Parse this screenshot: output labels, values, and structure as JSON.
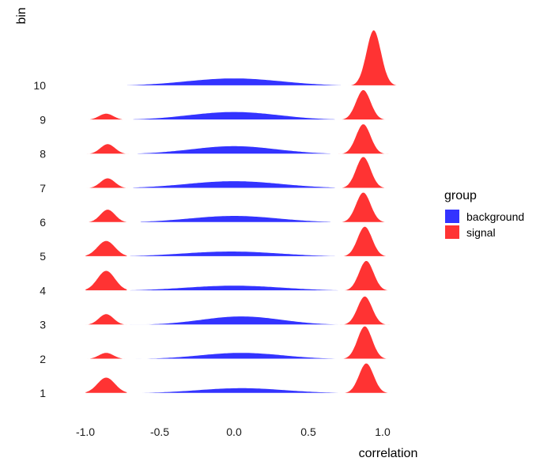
{
  "chart_data": {
    "type": "ridgeline",
    "xlabel": "correlation",
    "ylabel": "bin",
    "xlim": [
      -1.1,
      1.1
    ],
    "x_ticks": [
      -1.0,
      -0.5,
      0.0,
      0.5,
      1.0
    ],
    "x_tick_labels": [
      "-1.0",
      "-0.5",
      "0.0",
      "0.5",
      "1.0"
    ],
    "categories": [
      "1",
      "2",
      "3",
      "4",
      "5",
      "6",
      "7",
      "8",
      "9",
      "10"
    ],
    "legend": {
      "title": "group",
      "position": "right",
      "items": [
        {
          "key": "background",
          "label": "background",
          "color": "#3333ff"
        },
        {
          "key": "signal",
          "label": "signal",
          "color": "#ff3333"
        }
      ]
    },
    "grid": false,
    "series": [
      {
        "name": "background",
        "color": "#3333ff",
        "bins": [
          {
            "bin": "1",
            "center": 0.05,
            "spread": 0.3,
            "height": 0.18,
            "range": [
              -0.7,
              0.7
            ]
          },
          {
            "bin": "2",
            "center": 0.05,
            "spread": 0.28,
            "height": 0.22,
            "range": [
              -0.68,
              0.7
            ]
          },
          {
            "bin": "3",
            "center": 0.05,
            "spread": 0.27,
            "height": 0.3,
            "range": [
              -0.7,
              0.7
            ]
          },
          {
            "bin": "4",
            "center": 0.0,
            "spread": 0.33,
            "height": 0.18,
            "range": [
              -0.7,
              0.7
            ]
          },
          {
            "bin": "5",
            "center": -0.02,
            "spread": 0.33,
            "height": 0.18,
            "range": [
              -0.7,
              0.68
            ]
          },
          {
            "bin": "6",
            "center": 0.0,
            "spread": 0.3,
            "height": 0.23,
            "range": [
              -0.63,
              0.65
            ]
          },
          {
            "bin": "7",
            "center": 0.0,
            "spread": 0.32,
            "height": 0.25,
            "range": [
              -0.68,
              0.68
            ]
          },
          {
            "bin": "8",
            "center": 0.0,
            "spread": 0.29,
            "height": 0.28,
            "range": [
              -0.65,
              0.65
            ]
          },
          {
            "bin": "9",
            "center": 0.0,
            "spread": 0.3,
            "height": 0.28,
            "range": [
              -0.68,
              0.68
            ]
          },
          {
            "bin": "10",
            "center": 0.0,
            "spread": 0.32,
            "height": 0.26,
            "range": [
              -0.72,
              0.72
            ]
          }
        ]
      },
      {
        "name": "signal",
        "color": "#ff3333",
        "bins": [
          {
            "bin": "1",
            "lower": {
              "center": -0.86,
              "spread": 0.06,
              "height": 0.55
            },
            "upper": {
              "center": 0.89,
              "spread": 0.05,
              "height": 1.05
            }
          },
          {
            "bin": "2",
            "lower": {
              "center": -0.86,
              "spread": 0.05,
              "height": 0.22
            },
            "upper": {
              "center": 0.88,
              "spread": 0.05,
              "height": 1.15
            }
          },
          {
            "bin": "3",
            "lower": {
              "center": -0.86,
              "spread": 0.05,
              "height": 0.38
            },
            "upper": {
              "center": 0.88,
              "spread": 0.05,
              "height": 1.0
            }
          },
          {
            "bin": "4",
            "lower": {
              "center": -0.86,
              "spread": 0.06,
              "height": 0.7
            },
            "upper": {
              "center": 0.89,
              "spread": 0.05,
              "height": 1.05
            }
          },
          {
            "bin": "5",
            "lower": {
              "center": -0.86,
              "spread": 0.06,
              "height": 0.55
            },
            "upper": {
              "center": 0.88,
              "spread": 0.05,
              "height": 1.05
            }
          },
          {
            "bin": "6",
            "lower": {
              "center": -0.85,
              "spread": 0.05,
              "height": 0.45
            },
            "upper": {
              "center": 0.87,
              "spread": 0.05,
              "height": 1.05
            }
          },
          {
            "bin": "7",
            "lower": {
              "center": -0.85,
              "spread": 0.05,
              "height": 0.35
            },
            "upper": {
              "center": 0.87,
              "spread": 0.05,
              "height": 1.1
            }
          },
          {
            "bin": "8",
            "lower": {
              "center": -0.85,
              "spread": 0.05,
              "height": 0.35
            },
            "upper": {
              "center": 0.87,
              "spread": 0.05,
              "height": 1.05
            }
          },
          {
            "bin": "9",
            "lower": {
              "center": -0.86,
              "spread": 0.05,
              "height": 0.22
            },
            "upper": {
              "center": 0.87,
              "spread": 0.05,
              "height": 1.05
            }
          },
          {
            "bin": "10",
            "lower": null,
            "upper": {
              "center": 0.94,
              "spread": 0.05,
              "height": 1.95
            }
          }
        ]
      }
    ]
  }
}
